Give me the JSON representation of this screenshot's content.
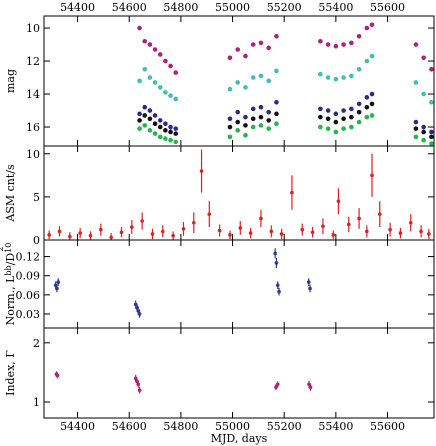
{
  "chart_data": [
    {
      "type": "scatter",
      "ylabel": "mag",
      "invert_y": true,
      "xlim": [
        54270,
        55780
      ],
      "xticks": [
        54400,
        54600,
        54800,
        55000,
        55200,
        55400,
        55600
      ],
      "ylim": [
        17.15,
        9.27
      ],
      "yticks": [
        10,
        12,
        14,
        16
      ],
      "x": [
        54640,
        54660,
        54680,
        54700,
        54720,
        54740,
        54760,
        54780,
        54990,
        55020,
        55050,
        55080,
        55110,
        55140,
        55170,
        55340,
        55370,
        55400,
        55430,
        55460,
        55490,
        55520,
        55540,
        55710,
        55740,
        55770
      ],
      "series": [
        {
          "color": "#b0207f",
          "values": [
            10.0,
            10.8,
            11.0,
            11.3,
            11.6,
            12.0,
            12.3,
            12.7,
            11.8,
            11.3,
            11.7,
            11.0,
            10.9,
            11.2,
            10.5,
            10.8,
            11.0,
            11.1,
            11.0,
            10.9,
            10.5,
            10.0,
            9.8,
            11.0,
            11.8,
            12.5
          ]
        },
        {
          "color": "#3dbfb8",
          "values": [
            13.2,
            12.5,
            13.0,
            13.3,
            13.6,
            13.9,
            14.1,
            14.3,
            13.7,
            13.3,
            13.6,
            13.0,
            12.9,
            13.2,
            12.6,
            12.8,
            13.0,
            13.1,
            13.0,
            12.9,
            12.5,
            12.0,
            11.7,
            13.3,
            14.0,
            14.5
          ]
        },
        {
          "color": "#2a2a8a",
          "values": [
            15.2,
            14.8,
            15.0,
            15.3,
            15.6,
            15.8,
            16.0,
            16.1,
            15.5,
            15.1,
            15.4,
            14.9,
            14.8,
            15.1,
            14.5,
            14.9,
            15.0,
            15.2,
            15.0,
            14.9,
            14.6,
            14.2,
            14.0,
            15.7,
            16.0,
            16.3
          ]
        },
        {
          "color": "#111111",
          "values": [
            15.6,
            15.3,
            15.5,
            15.8,
            16.0,
            16.2,
            16.3,
            16.4,
            16.0,
            15.7,
            15.9,
            15.5,
            15.4,
            15.6,
            15.2,
            15.4,
            15.5,
            15.7,
            15.5,
            15.4,
            15.1,
            14.8,
            14.6,
            16.1,
            16.3,
            16.6
          ]
        },
        {
          "color": "#1fb84a",
          "values": [
            16.1,
            15.9,
            16.2,
            16.4,
            16.6,
            16.7,
            16.8,
            16.9,
            16.6,
            16.2,
            16.5,
            16.0,
            15.9,
            16.1,
            15.8,
            16.0,
            16.1,
            16.3,
            16.1,
            16.0,
            15.7,
            15.4,
            15.3,
            16.6,
            16.8,
            17.0
          ]
        }
      ]
    },
    {
      "type": "scatter",
      "ylabel": "ASM cnt/s",
      "xlim": [
        54270,
        55780
      ],
      "xticks": [
        54400,
        54600,
        54800,
        55000,
        55200,
        55400,
        55600
      ],
      "ylim": [
        0,
        10.9
      ],
      "yticks": [
        0,
        5,
        10
      ],
      "x": [
        54290,
        54330,
        54370,
        54410,
        54450,
        54490,
        54530,
        54570,
        54610,
        54650,
        54690,
        54730,
        54770,
        54810,
        54850,
        54880,
        54910,
        54950,
        54990,
        55030,
        55070,
        55110,
        55150,
        55190,
        55230,
        55270,
        55310,
        55350,
        55390,
        55410,
        55450,
        55490,
        55520,
        55540,
        55570,
        55610,
        55650,
        55690,
        55730,
        55760
      ],
      "series": [
        {
          "color": "#e02020",
          "values": [
            0.6,
            1.0,
            0.4,
            0.8,
            0.5,
            1.2,
            0.3,
            0.9,
            1.5,
            2.2,
            0.7,
            1.0,
            0.5,
            1.3,
            2.0,
            8.0,
            3.0,
            1.1,
            0.6,
            1.4,
            0.8,
            2.5,
            1.0,
            0.7,
            5.5,
            1.2,
            0.9,
            1.6,
            0.6,
            4.5,
            1.8,
            2.5,
            1.0,
            7.5,
            3.0,
            1.2,
            0.8,
            2.0,
            1.0,
            0.7
          ],
          "errors": [
            0.5,
            0.6,
            0.5,
            0.6,
            0.5,
            0.7,
            0.5,
            0.6,
            0.8,
            1.0,
            0.6,
            0.7,
            0.5,
            0.8,
            1.2,
            2.5,
            1.5,
            0.7,
            0.5,
            0.8,
            0.6,
            1.0,
            0.7,
            0.6,
            2.0,
            0.7,
            0.6,
            0.9,
            0.5,
            1.5,
            0.9,
            1.2,
            0.7,
            2.5,
            1.5,
            0.8,
            0.6,
            1.0,
            0.7,
            0.6
          ]
        }
      ]
    },
    {
      "type": "scatter",
      "ylabel": [
        "Norm., L",
        "bb",
        "/D",
        "10",
        "2"
      ],
      "xlim": [
        54270,
        55780
      ],
      "xticks": [
        54400,
        54600,
        54800,
        55000,
        55200,
        55400,
        55600
      ],
      "ylim": [
        0.008,
        0.146
      ],
      "yticks": [
        0.03,
        0.06,
        0.09,
        0.12
      ],
      "x": [
        54315,
        54320,
        54325,
        54625,
        54630,
        54635,
        54640,
        55165,
        55170,
        55175,
        55180,
        55295,
        55300
      ],
      "series": [
        {
          "color": "#2a3a9a",
          "values": [
            0.075,
            0.07,
            0.08,
            0.045,
            0.04,
            0.035,
            0.03,
            0.125,
            0.11,
            0.075,
            0.065,
            0.08,
            0.07
          ],
          "errors": [
            0.006,
            0.006,
            0.006,
            0.006,
            0.006,
            0.006,
            0.006,
            0.008,
            0.008,
            0.006,
            0.006,
            0.006,
            0.006
          ]
        }
      ]
    },
    {
      "type": "scatter",
      "ylabel": "Index, Γ",
      "xlabel": "MJD, days",
      "xlim": [
        54270,
        55780
      ],
      "xticks": [
        54400,
        54600,
        54800,
        55000,
        55200,
        55400,
        55600
      ],
      "ylim": [
        0.73,
        2.25
      ],
      "yticks": [
        1,
        2
      ],
      "x": [
        54318,
        54322,
        54625,
        54630,
        54635,
        54640,
        55168,
        55175,
        55296,
        55302
      ],
      "series": [
        {
          "color": "#b0207f",
          "values": [
            1.47,
            1.45,
            1.4,
            1.35,
            1.3,
            1.2,
            1.25,
            1.3,
            1.3,
            1.25
          ],
          "errors": [
            0.05,
            0.05,
            0.06,
            0.06,
            0.06,
            0.06,
            0.05,
            0.05,
            0.06,
            0.06
          ]
        }
      ]
    }
  ]
}
